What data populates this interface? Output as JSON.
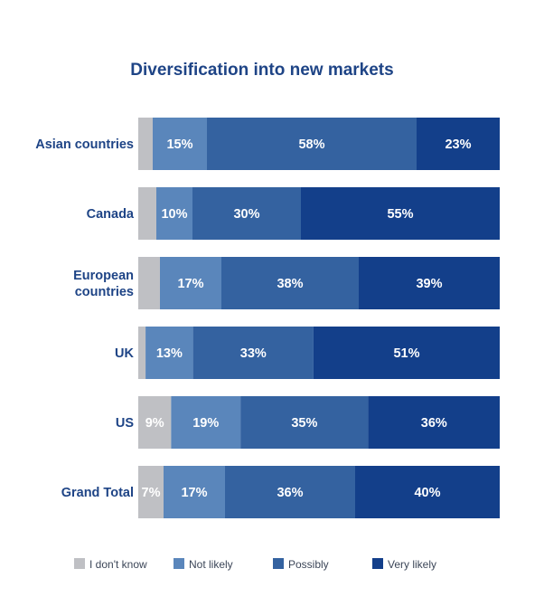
{
  "chart_data": {
    "type": "bar",
    "orientation": "horizontal",
    "stacked": true,
    "title": "Diversification into new markets",
    "xlabel": "",
    "ylabel": "",
    "xlim": [
      0,
      100
    ],
    "grid": false,
    "legend_position": "bottom",
    "categories": [
      [
        "Asian countries"
      ],
      [
        "Canada"
      ],
      [
        "European",
        "countries"
      ],
      [
        "UK"
      ],
      [
        "US"
      ],
      [
        "Grand Total"
      ]
    ],
    "series": [
      {
        "name": "I don't know",
        "color": "#bfc0c4",
        "values": [
          4,
          5,
          6,
          2,
          9,
          7
        ],
        "labels": [
          "",
          "",
          "",
          "",
          "9%",
          "7%"
        ]
      },
      {
        "name": "Not likely",
        "color": "#5a86bb",
        "values": [
          15,
          10,
          17,
          13,
          19,
          17
        ],
        "labels": [
          "15%",
          "10%",
          "17%",
          "13%",
          "19%",
          "17%"
        ]
      },
      {
        "name": "Possibly",
        "color": "#3462a0",
        "values": [
          58,
          30,
          38,
          33,
          35,
          36
        ],
        "labels": [
          "58%",
          "30%",
          "38%",
          "33%",
          "35%",
          "36%"
        ]
      },
      {
        "name": "Very likely",
        "color": "#133f8a",
        "values": [
          23,
          55,
          39,
          51,
          36,
          40
        ],
        "labels": [
          "23%",
          "55%",
          "39%",
          "51%",
          "36%",
          "40%"
        ]
      }
    ]
  },
  "colors": {
    "title": "#1e4486",
    "category_text": "#1e4486",
    "legend_text": "#3c4658"
  }
}
